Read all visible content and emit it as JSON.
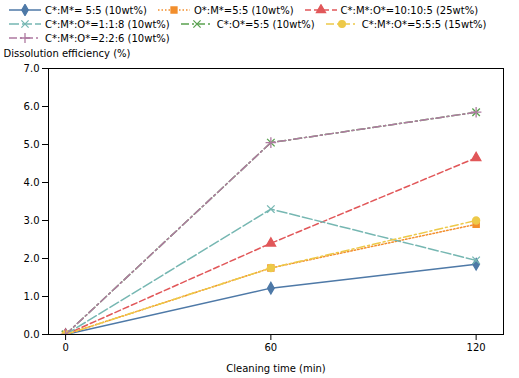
{
  "chart_data": {
    "type": "line",
    "xlabel": "Cleaning time (min)",
    "ylabel": "Dissolution efficiency (%)",
    "x": [
      0,
      60,
      120
    ],
    "series": [
      {
        "name": "C*:M*= 5:5 (10wt%)",
        "values": [
          0,
          1.22,
          1.85
        ],
        "marker": "diamond",
        "line_style": "solid"
      },
      {
        "name": "O*:M*=5:5 (10wt%)",
        "values": [
          0,
          1.75,
          2.9
        ],
        "marker": "square",
        "line_style": "dotted"
      },
      {
        "name": "C*:M*:O*=10:10:5 (25wt%)",
        "values": [
          0,
          2.4,
          4.65
        ],
        "marker": "triangle",
        "line_style": "dashed"
      },
      {
        "name": "C*:M*:O*=1:1:8 (10wt%)",
        "values": [
          0,
          3.3,
          1.95
        ],
        "marker": "x",
        "line_style": "longdash"
      },
      {
        "name": "C*:O*=5:5 (10wt%)",
        "values": [
          0,
          5.05,
          5.85
        ],
        "marker": "x",
        "line_style": "dashdot"
      },
      {
        "name": "C*:M*:O*=5:5:5 (15wt%)",
        "values": [
          0,
          1.75,
          3.0
        ],
        "marker": "circle",
        "line_style": "dashdot"
      },
      {
        "name": "C*:M*:O*=2:2:6 (10wt%)",
        "values": [
          0,
          5.05,
          5.85
        ],
        "marker": "plus",
        "line_style": "dashdot"
      }
    ],
    "xlim": [
      -5,
      128
    ],
    "ylim": [
      0,
      7
    ],
    "xticks": [
      0,
      60,
      120
    ],
    "yticks": [
      0,
      1,
      2,
      3,
      4,
      5,
      6,
      7
    ],
    "grid": false,
    "legend": "upper left"
  }
}
